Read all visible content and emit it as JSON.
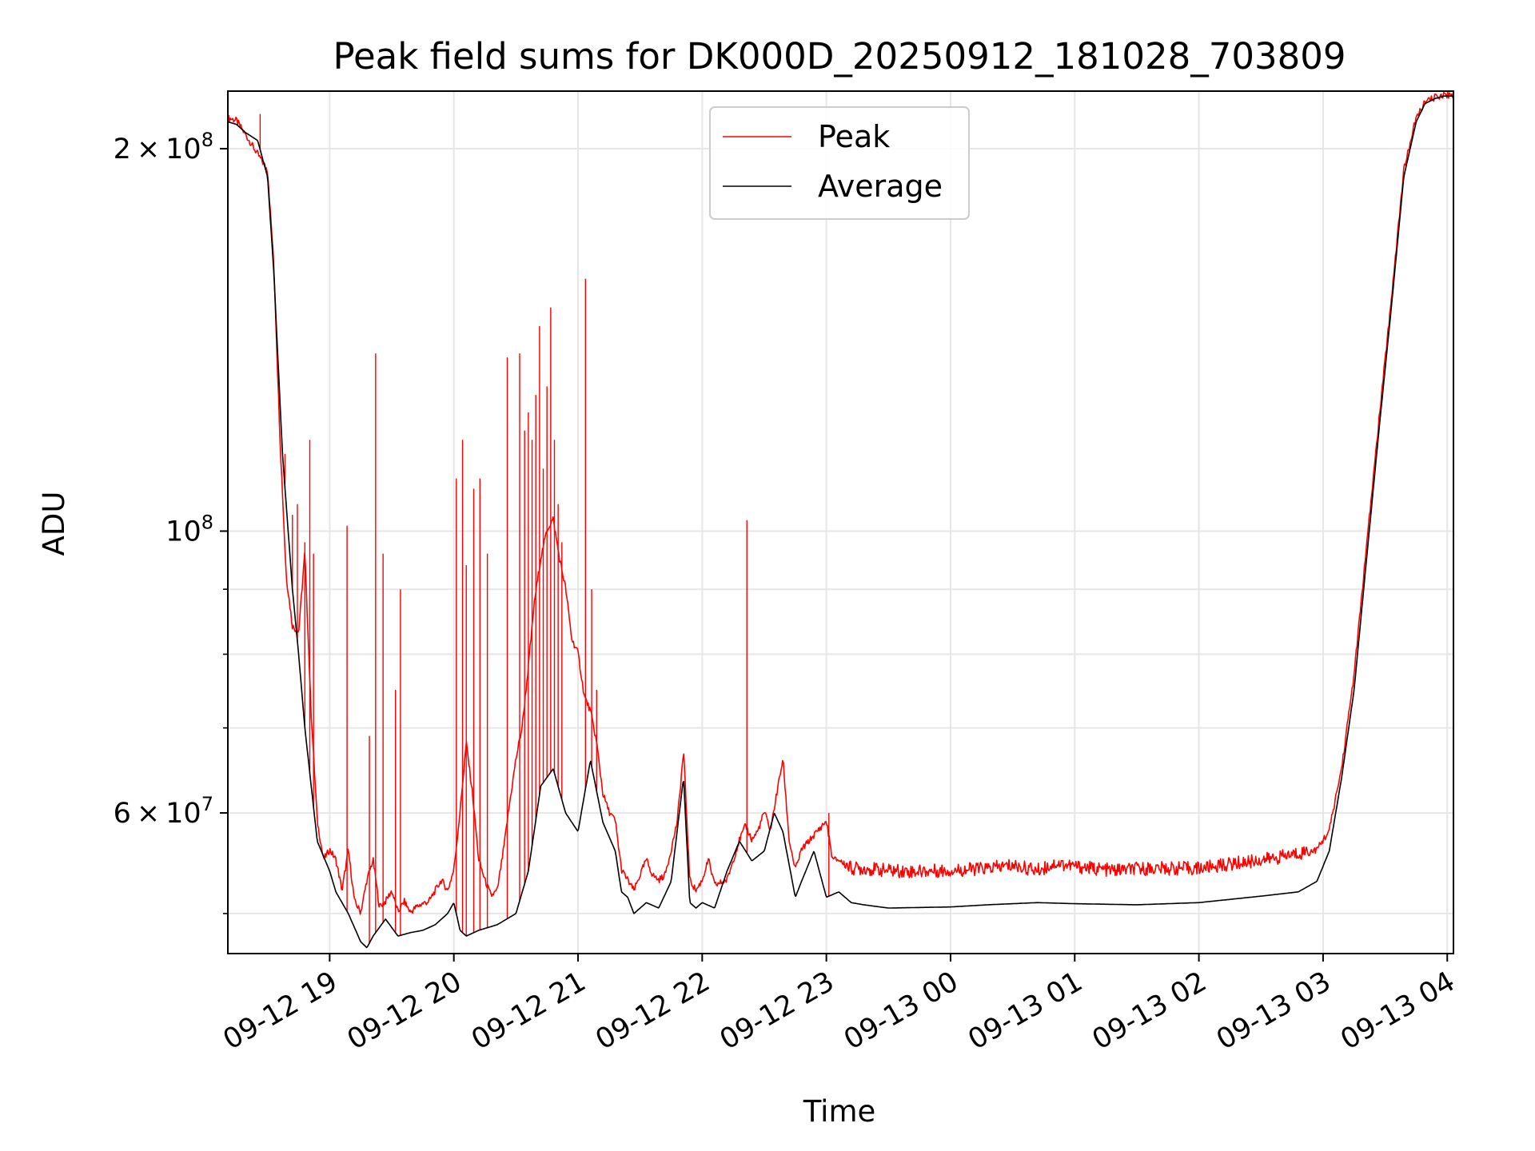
{
  "chart_data": {
    "type": "line",
    "title": "Peak field sums for DK000D_20250912_181028_703809",
    "xlabel": "Time",
    "ylabel": "ADU",
    "yscale": "log",
    "ylim": [
      46500000,
      222000000
    ],
    "xlim_hours": [
      18.18,
      28.05
    ],
    "grid": true,
    "legend": {
      "placement": "upper center",
      "entries": [
        "Peak",
        "Average"
      ]
    },
    "x_ticks": [
      {
        "hour": 19,
        "label": "09-12 19"
      },
      {
        "hour": 20,
        "label": "09-12 20"
      },
      {
        "hour": 21,
        "label": "09-12 21"
      },
      {
        "hour": 22,
        "label": "09-12 22"
      },
      {
        "hour": 23,
        "label": "09-12 23"
      },
      {
        "hour": 24,
        "label": "09-13 00"
      },
      {
        "hour": 25,
        "label": "09-13 01"
      },
      {
        "hour": 26,
        "label": "09-13 02"
      },
      {
        "hour": 27,
        "label": "09-13 03"
      },
      {
        "hour": 28,
        "label": "09-13 04"
      }
    ],
    "y_major_ticks": [
      {
        "value": 60000000,
        "mantissa": "6",
        "exponent": "7"
      },
      {
        "value": 100000000,
        "mantissa": "",
        "exponent": "8"
      },
      {
        "value": 200000000,
        "mantissa": "2",
        "exponent": "8"
      }
    ],
    "y_minor_ticks": [
      50000000,
      70000000,
      80000000,
      90000000
    ],
    "series": [
      {
        "name": "Average",
        "color": "#000000",
        "x_hours": [
          18.18,
          18.25,
          18.32,
          18.42,
          18.5,
          18.55,
          18.62,
          18.7,
          18.75,
          18.8,
          18.9,
          19.0,
          19.05,
          19.15,
          19.25,
          19.3,
          19.35,
          19.45,
          19.55,
          19.65,
          19.75,
          19.85,
          19.95,
          20.0,
          20.05,
          20.1,
          20.2,
          20.35,
          20.5,
          20.6,
          20.7,
          20.8,
          20.9,
          21.0,
          21.1,
          21.2,
          21.3,
          21.35,
          21.4,
          21.45,
          21.55,
          21.65,
          21.75,
          21.85,
          21.9,
          21.95,
          22.0,
          22.1,
          22.2,
          22.3,
          22.4,
          22.5,
          22.58,
          22.65,
          22.75,
          22.8,
          22.9,
          23.0,
          23.1,
          23.2,
          23.3,
          23.5,
          24.0,
          24.3,
          24.7,
          25.0,
          25.5,
          26.0,
          26.5,
          26.8,
          26.95,
          27.05,
          27.15,
          27.25,
          27.35,
          27.45,
          27.55,
          27.65,
          27.75,
          27.82,
          27.9,
          27.97,
          28.05
        ],
        "y": [
          210000000,
          209000000,
          206000000,
          203000000,
          190000000,
          160000000,
          115000000,
          90000000,
          80000000,
          70000000,
          57000000,
          54000000,
          52000000,
          50000000,
          47500000,
          47000000,
          48000000,
          49500000,
          48000000,
          48300000,
          48500000,
          49000000,
          50000000,
          51000000,
          48500000,
          48000000,
          48500000,
          49000000,
          50000000,
          54000000,
          63000000,
          65000000,
          60000000,
          58000000,
          66000000,
          59000000,
          56000000,
          52000000,
          51500000,
          50000000,
          51000000,
          50500000,
          53000000,
          64000000,
          51000000,
          50500000,
          51000000,
          50500000,
          54000000,
          57000000,
          55000000,
          56000000,
          60000000,
          58000000,
          51500000,
          53000000,
          56000000,
          51500000,
          52000000,
          51000000,
          50800000,
          50500000,
          50600000,
          50800000,
          51000000,
          50900000,
          50800000,
          51000000,
          51600000,
          52000000,
          53000000,
          56000000,
          64000000,
          75000000,
          95000000,
          120000000,
          150000000,
          190000000,
          210000000,
          217000000,
          219000000,
          220000000,
          220000000
        ]
      },
      {
        "name": "Peak",
        "color": "#ff0000",
        "x_hours": [
          18.18,
          18.25,
          18.5,
          18.55,
          18.6,
          18.65,
          18.7,
          18.75,
          18.8,
          18.85,
          18.9,
          18.95,
          19.0,
          19.05,
          19.1,
          19.15,
          19.2,
          19.25,
          19.3,
          19.35,
          19.4,
          19.45,
          19.5,
          19.55,
          19.6,
          19.65,
          19.7,
          19.75,
          19.8,
          19.85,
          19.9,
          19.95,
          20.0,
          20.05,
          20.1,
          20.15,
          20.2,
          20.25,
          20.3,
          20.35,
          20.4,
          20.45,
          20.5,
          20.55,
          20.6,
          20.65,
          20.7,
          20.75,
          20.8,
          20.85,
          20.9,
          20.95,
          21.0,
          21.05,
          21.1,
          21.15,
          21.2,
          21.25,
          21.3,
          21.35,
          21.4,
          21.45,
          21.5,
          21.55,
          21.6,
          21.65,
          21.7,
          21.75,
          21.8,
          21.85,
          21.9,
          21.95,
          22.0,
          22.05,
          22.1,
          22.2,
          22.3,
          22.35,
          22.4,
          22.45,
          22.5,
          22.55,
          22.6,
          22.65,
          22.7,
          22.75,
          22.8,
          22.9,
          23.0,
          23.05,
          23.1,
          23.2,
          23.3,
          23.5,
          23.7,
          24.0,
          24.3,
          24.5,
          24.7,
          24.85,
          25.0,
          25.3,
          25.6,
          26.0,
          26.3,
          26.6,
          26.8,
          26.95,
          27.05,
          27.15,
          27.25,
          27.35,
          27.45,
          27.55,
          27.65,
          27.75,
          27.82,
          27.9,
          27.97,
          28.05
        ],
        "y": [
          211000000,
          210000000,
          192000000,
          162000000,
          118000000,
          92000000,
          84000000,
          83000000,
          96000000,
          72000000,
          59000000,
          55000000,
          56000000,
          55000000,
          52000000,
          56000000,
          51000000,
          50000000,
          53000000,
          55000000,
          50500000,
          51000000,
          52000000,
          50000000,
          51000000,
          50000000,
          50500000,
          50800000,
          51000000,
          52000000,
          53000000,
          52000000,
          54000000,
          60000000,
          68000000,
          62000000,
          55000000,
          53000000,
          51500000,
          52000000,
          56000000,
          61000000,
          66000000,
          70000000,
          78000000,
          88000000,
          95000000,
          100000000,
          102000000,
          95000000,
          90000000,
          82000000,
          80000000,
          74000000,
          72000000,
          68000000,
          62000000,
          60000000,
          59000000,
          54000000,
          53000000,
          52000000,
          53500000,
          55000000,
          53500000,
          53000000,
          53500000,
          56000000,
          59000000,
          67000000,
          53000000,
          52000000,
          53000000,
          55000000,
          52500000,
          53000000,
          57000000,
          58500000,
          57000000,
          58000000,
          60000000,
          58000000,
          62000000,
          66000000,
          57000000,
          54000000,
          56000000,
          57500000,
          59000000,
          55000000,
          55000000,
          54000000,
          54000000,
          53800000,
          53700000,
          53800000,
          54000000,
          54300000,
          53800000,
          54500000,
          54200000,
          53800000,
          54000000,
          54000000,
          54500000,
          55000000,
          55500000,
          56000000,
          58000000,
          65000000,
          77000000,
          97000000,
          122000000,
          152000000,
          192000000,
          211000000,
          217000000,
          219000000,
          220000000,
          220000000
        ]
      }
    ],
    "peak_spikes": [
      {
        "hour": 18.44,
        "value": 213000000
      },
      {
        "hour": 18.64,
        "value": 115000000
      },
      {
        "hour": 18.7,
        "value": 103000000
      },
      {
        "hour": 18.74,
        "value": 105000000
      },
      {
        "hour": 18.8,
        "value": 98000000
      },
      {
        "hour": 18.84,
        "value": 118000000
      },
      {
        "hour": 18.87,
        "value": 96000000
      },
      {
        "hour": 19.14,
        "value": 101000000
      },
      {
        "hour": 19.32,
        "value": 69000000
      },
      {
        "hour": 19.37,
        "value": 138000000
      },
      {
        "hour": 19.43,
        "value": 96000000
      },
      {
        "hour": 19.53,
        "value": 75000000
      },
      {
        "hour": 19.57,
        "value": 90000000
      },
      {
        "hour": 20.02,
        "value": 110000000
      },
      {
        "hour": 20.07,
        "value": 118000000
      },
      {
        "hour": 20.1,
        "value": 94000000
      },
      {
        "hour": 20.16,
        "value": 108000000
      },
      {
        "hour": 20.21,
        "value": 110000000
      },
      {
        "hour": 20.27,
        "value": 96000000
      },
      {
        "hour": 20.43,
        "value": 137000000
      },
      {
        "hour": 20.53,
        "value": 138000000
      },
      {
        "hour": 20.57,
        "value": 120000000
      },
      {
        "hour": 20.6,
        "value": 124000000
      },
      {
        "hour": 20.63,
        "value": 118000000
      },
      {
        "hour": 20.66,
        "value": 128000000
      },
      {
        "hour": 20.69,
        "value": 145000000
      },
      {
        "hour": 20.72,
        "value": 112000000
      },
      {
        "hour": 20.75,
        "value": 130000000
      },
      {
        "hour": 20.78,
        "value": 150000000
      },
      {
        "hour": 20.81,
        "value": 118000000
      },
      {
        "hour": 20.84,
        "value": 105000000
      },
      {
        "hour": 20.87,
        "value": 98000000
      },
      {
        "hour": 21.06,
        "value": 158000000
      },
      {
        "hour": 21.11,
        "value": 90000000
      },
      {
        "hour": 21.15,
        "value": 75000000
      },
      {
        "hour": 22.36,
        "value": 102000000
      },
      {
        "hour": 23.02,
        "value": 60000000
      }
    ]
  }
}
